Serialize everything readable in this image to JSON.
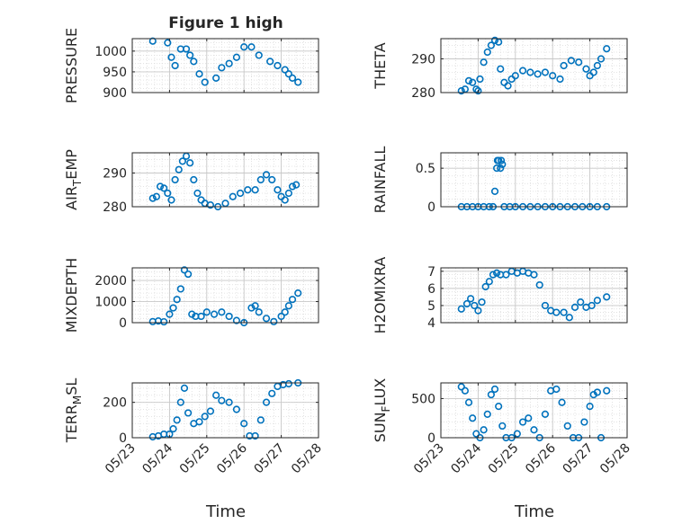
{
  "figure": {
    "title": "Figure 1 high"
  },
  "style": {
    "marker_color": "#0072BD",
    "axis_color": "#262626",
    "grid_color": "#dcdcdc"
  },
  "chart_data": [
    {
      "type": "scatter",
      "panel": "pressure",
      "ylabel": "PRESSURE",
      "ylim": [
        900,
        1030
      ],
      "yticks": [
        900,
        950,
        1000
      ],
      "xlim": [
        0,
        5
      ],
      "xticks": [
        0,
        1,
        2,
        3,
        4,
        5
      ],
      "xtick_labels": [
        "05/23",
        "05/24",
        "05/25",
        "05/26",
        "05/27",
        "05/28"
      ],
      "show_xticklabels": false,
      "grid": true,
      "x": [
        0.55,
        0.95,
        1.05,
        1.15,
        1.3,
        1.45,
        1.55,
        1.65,
        1.8,
        1.95,
        2.25,
        2.4,
        2.6,
        2.8,
        3.0,
        3.2,
        3.4,
        3.7,
        3.9,
        4.1,
        4.2,
        4.3,
        4.45
      ],
      "y": [
        1024,
        1020,
        985,
        965,
        1005,
        1005,
        990,
        975,
        945,
        925,
        935,
        960,
        970,
        985,
        1010,
        1010,
        990,
        975,
        965,
        955,
        945,
        935,
        925
      ]
    },
    {
      "type": "scatter",
      "panel": "theta",
      "ylabel": "THETA",
      "ylim": [
        280,
        296
      ],
      "yticks": [
        280,
        290
      ],
      "xlim": [
        0,
        5
      ],
      "xticks": [
        0,
        1,
        2,
        3,
        4,
        5
      ],
      "xtick_labels": [
        "05/23",
        "05/24",
        "05/25",
        "05/26",
        "05/27",
        "05/28"
      ],
      "show_xticklabels": false,
      "grid": true,
      "x": [
        0.55,
        0.65,
        0.75,
        0.85,
        0.95,
        1.0,
        1.05,
        1.15,
        1.25,
        1.35,
        1.45,
        1.55,
        1.6,
        1.7,
        1.8,
        1.9,
        2.0,
        2.2,
        2.4,
        2.6,
        2.8,
        3.0,
        3.2,
        3.3,
        3.5,
        3.7,
        3.9,
        4.0,
        4.1,
        4.2,
        4.3,
        4.45
      ],
      "y": [
        280.5,
        281,
        283.5,
        283,
        281,
        280.5,
        284,
        289,
        292,
        294,
        295.5,
        295,
        287,
        283,
        282,
        284,
        285,
        286.5,
        286,
        285.5,
        286,
        285,
        284,
        288,
        289.5,
        289,
        287,
        285,
        286,
        288,
        290,
        293
      ]
    },
    {
      "type": "scatter",
      "panel": "air_temp",
      "ylabel": "AIR_TEMP",
      "ylim": [
        280,
        296
      ],
      "yticks": [
        280,
        290
      ],
      "xlim": [
        0,
        5
      ],
      "xticks": [
        0,
        1,
        2,
        3,
        4,
        5
      ],
      "xtick_labels": [
        "05/23",
        "05/24",
        "05/25",
        "05/26",
        "05/27",
        "05/28"
      ],
      "show_xticklabels": false,
      "grid": true,
      "x": [
        0.55,
        0.65,
        0.75,
        0.85,
        0.95,
        1.05,
        1.15,
        1.25,
        1.35,
        1.45,
        1.55,
        1.65,
        1.75,
        1.85,
        1.95,
        2.1,
        2.3,
        2.5,
        2.7,
        2.9,
        3.1,
        3.3,
        3.45,
        3.6,
        3.75,
        3.9,
        4.0,
        4.1,
        4.2,
        4.3,
        4.4
      ],
      "y": [
        282.5,
        283,
        286,
        285.5,
        284,
        282,
        288,
        291,
        293.5,
        295,
        293,
        288,
        284,
        282,
        281,
        280.5,
        280,
        281,
        283,
        284,
        285,
        285,
        288,
        289.5,
        288,
        285,
        283,
        282,
        284,
        286,
        286.5
      ]
    },
    {
      "type": "scatter",
      "panel": "rainfall",
      "ylabel": "RAINFALL",
      "ylim": [
        0,
        0.7
      ],
      "yticks": [
        0,
        0.5
      ],
      "xlim": [
        0,
        5
      ],
      "xticks": [
        0,
        1,
        2,
        3,
        4,
        5
      ],
      "xtick_labels": [
        "05/23",
        "05/24",
        "05/25",
        "05/26",
        "05/27",
        "05/28"
      ],
      "show_xticklabels": false,
      "grid": true,
      "x": [
        0.55,
        0.7,
        0.85,
        1.0,
        1.15,
        1.3,
        1.4,
        1.45,
        1.5,
        1.52,
        1.55,
        1.6,
        1.62,
        1.65,
        1.7,
        1.85,
        2.0,
        2.2,
        2.4,
        2.6,
        2.8,
        3.0,
        3.2,
        3.4,
        3.6,
        3.8,
        4.0,
        4.2,
        4.45
      ],
      "y": [
        0,
        0,
        0,
        0,
        0,
        0,
        0,
        0.2,
        0.5,
        0.6,
        0.6,
        0.5,
        0.6,
        0.55,
        0,
        0,
        0,
        0,
        0,
        0,
        0,
        0,
        0,
        0,
        0,
        0,
        0,
        0,
        0
      ]
    },
    {
      "type": "scatter",
      "panel": "mixdepth",
      "ylabel": "MIXDEPTH",
      "ylim": [
        0,
        2600
      ],
      "yticks": [
        0,
        1000,
        2000
      ],
      "xlim": [
        0,
        5
      ],
      "xticks": [
        0,
        1,
        2,
        3,
        4,
        5
      ],
      "xtick_labels": [
        "05/23",
        "05/24",
        "05/25",
        "05/26",
        "05/27",
        "05/28"
      ],
      "show_xticklabels": false,
      "grid": true,
      "x": [
        0.55,
        0.7,
        0.85,
        1.0,
        1.1,
        1.2,
        1.3,
        1.4,
        1.5,
        1.6,
        1.7,
        1.85,
        2.0,
        2.2,
        2.4,
        2.6,
        2.8,
        3.0,
        3.2,
        3.3,
        3.4,
        3.6,
        3.8,
        4.0,
        4.1,
        4.2,
        4.3,
        4.45
      ],
      "y": [
        50,
        80,
        40,
        400,
        700,
        1100,
        1600,
        2500,
        2300,
        400,
        300,
        300,
        500,
        400,
        500,
        300,
        100,
        0,
        700,
        800,
        500,
        200,
        50,
        300,
        500,
        800,
        1100,
        1400
      ]
    },
    {
      "type": "scatter",
      "panel": "h2omixra",
      "ylabel": "H2OMIXRA",
      "ylim": [
        4,
        7.2
      ],
      "yticks": [
        4,
        5,
        6,
        7
      ],
      "xlim": [
        0,
        5
      ],
      "xticks": [
        0,
        1,
        2,
        3,
        4,
        5
      ],
      "xtick_labels": [
        "05/23",
        "05/24",
        "05/25",
        "05/26",
        "05/27",
        "05/28"
      ],
      "show_xticklabels": false,
      "grid": true,
      "x": [
        0.55,
        0.7,
        0.8,
        0.9,
        1.0,
        1.1,
        1.2,
        1.3,
        1.4,
        1.5,
        1.6,
        1.75,
        1.9,
        2.05,
        2.2,
        2.35,
        2.5,
        2.65,
        2.8,
        2.95,
        3.1,
        3.3,
        3.45,
        3.6,
        3.75,
        3.9,
        4.05,
        4.2,
        4.45
      ],
      "y": [
        4.8,
        5.1,
        5.4,
        5.0,
        4.7,
        5.2,
        6.1,
        6.4,
        6.8,
        6.9,
        6.8,
        6.8,
        7.0,
        6.9,
        7.0,
        6.9,
        6.8,
        6.2,
        5.0,
        4.7,
        4.6,
        4.6,
        4.3,
        4.9,
        5.2,
        4.9,
        5.0,
        5.3,
        5.5
      ]
    },
    {
      "type": "scatter",
      "panel": "terr_msl",
      "ylabel": "TERR_MSL",
      "ylim": [
        0,
        310
      ],
      "yticks": [
        0,
        200
      ],
      "xlim": [
        0,
        5
      ],
      "xticks": [
        0,
        1,
        2,
        3,
        4,
        5
      ],
      "xtick_labels": [
        "05/23",
        "05/24",
        "05/25",
        "05/26",
        "05/27",
        "05/28"
      ],
      "show_xticklabels": true,
      "grid": true,
      "x": [
        0.55,
        0.7,
        0.85,
        1.0,
        1.1,
        1.2,
        1.3,
        1.4,
        1.5,
        1.65,
        1.8,
        1.95,
        2.1,
        2.25,
        2.4,
        2.6,
        2.8,
        3.0,
        3.15,
        3.3,
        3.45,
        3.6,
        3.75,
        3.9,
        4.05,
        4.2,
        4.45
      ],
      "y": [
        5,
        10,
        20,
        20,
        50,
        100,
        200,
        280,
        140,
        80,
        90,
        120,
        150,
        240,
        210,
        200,
        160,
        80,
        10,
        10,
        100,
        200,
        250,
        290,
        300,
        305,
        310
      ]
    },
    {
      "type": "scatter",
      "panel": "sun_flux",
      "ylabel": "SUN_FLUX",
      "ylim": [
        0,
        700
      ],
      "yticks": [
        0,
        500
      ],
      "xlim": [
        0,
        5
      ],
      "xticks": [
        0,
        1,
        2,
        3,
        4,
        5
      ],
      "xtick_labels": [
        "05/23",
        "05/24",
        "05/25",
        "05/26",
        "05/27",
        "05/28"
      ],
      "show_xticklabels": true,
      "grid": true,
      "x": [
        0.55,
        0.65,
        0.75,
        0.85,
        0.95,
        1.05,
        1.15,
        1.25,
        1.35,
        1.45,
        1.55,
        1.65,
        1.75,
        1.9,
        2.05,
        2.2,
        2.35,
        2.5,
        2.65,
        2.8,
        2.95,
        3.1,
        3.25,
        3.4,
        3.55,
        3.7,
        3.85,
        4.0,
        4.1,
        4.2,
        4.3,
        4.45
      ],
      "y": [
        650,
        600,
        450,
        250,
        50,
        0,
        100,
        300,
        550,
        620,
        400,
        150,
        0,
        0,
        50,
        200,
        250,
        100,
        0,
        300,
        600,
        620,
        450,
        150,
        0,
        0,
        200,
        400,
        550,
        580,
        0,
        600
      ]
    }
  ],
  "axes_labels": {
    "xlabel_left": "Time",
    "xlabel_right": "Time"
  }
}
